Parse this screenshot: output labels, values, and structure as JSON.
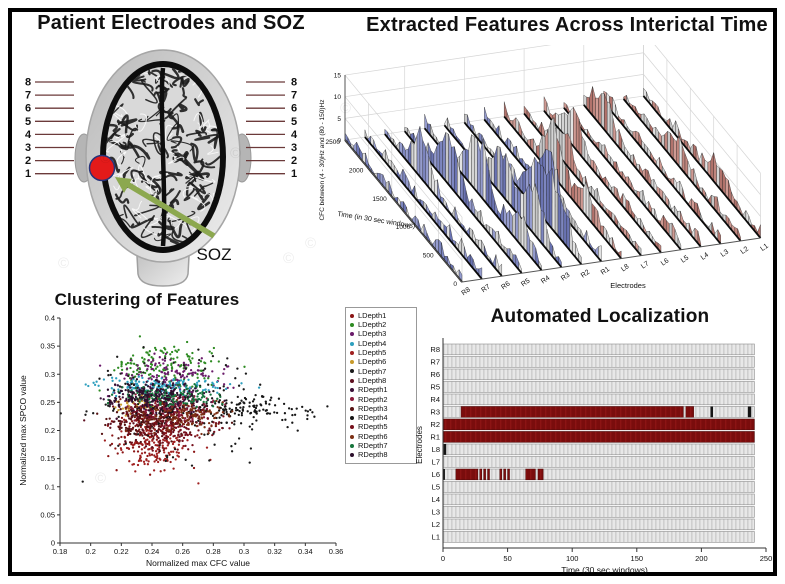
{
  "figure": {
    "background": "#ffffff",
    "border_color": "#000000",
    "watermark_symbol": "©"
  },
  "panel1": {
    "title": "Patient Electrodes and SOZ",
    "electrode_numbers": [
      "8",
      "7",
      "6",
      "5",
      "4",
      "3",
      "2",
      "1"
    ],
    "soz_label": "SOZ",
    "colors": {
      "soz_dot": "#e31a1a",
      "soz_dot_edge": "#26337a",
      "arrow": "#8ca84f",
      "electrode_line": "#6b3a3a"
    }
  },
  "panel2": {
    "title": "Extracted Features Across Interictal Time"
  },
  "panel3": {
    "title": "Clustering of Features"
  },
  "panel4": {
    "title": "Automated Localization"
  },
  "chart_data": [
    {
      "type": "area",
      "variant": "3d-waterfall",
      "title": "Extracted Features Across Interictal Time",
      "xlabel": "Electrodes",
      "ylabel": "Time (in 30 sec windows)",
      "zlabel": "CFC between (4 - 30)Hz and (80 - 150)Hz",
      "electrodes": [
        "R8",
        "R7",
        "R6",
        "R5",
        "R4",
        "R3",
        "R2",
        "R1",
        "L8",
        "L7",
        "L6",
        "L5",
        "L4",
        "L3",
        "L2",
        "L1"
      ],
      "time_range": [
        0,
        2500
      ],
      "time_ticks": [
        0,
        500,
        1000,
        1500,
        2000,
        2500
      ],
      "z_range": [
        0,
        15
      ],
      "z_ticks": [
        0,
        5,
        10,
        15
      ],
      "baseline_noise": [
        0,
        3
      ],
      "colors": {
        "right_electrodes": "#7d86c0",
        "left_electrodes": "#c1867e",
        "facet_gray": "#d4d4d4",
        "grid": "#d5d5d5"
      },
      "peaks": [
        {
          "electrode": "R6",
          "time": 1700,
          "value": 8
        },
        {
          "electrode": "R5",
          "time": 1550,
          "value": 10
        },
        {
          "electrode": "R4",
          "time": 1350,
          "value": 12
        },
        {
          "electrode": "R4",
          "time": 450,
          "value": 5
        },
        {
          "electrode": "R3",
          "time": 1250,
          "value": 9
        },
        {
          "electrode": "R3",
          "time": 600,
          "value": 9
        },
        {
          "electrode": "R2",
          "time": 950,
          "value": 10
        },
        {
          "electrode": "R2",
          "time": 500,
          "value": 10
        },
        {
          "electrode": "R1",
          "time": 1100,
          "value": 8
        },
        {
          "electrode": "L8",
          "time": 1450,
          "value": 10
        },
        {
          "electrode": "L8",
          "time": 700,
          "value": 5
        },
        {
          "electrode": "L7",
          "time": 1650,
          "value": 5
        },
        {
          "electrode": "L6",
          "time": 1850,
          "value": 7
        },
        {
          "electrode": "L4",
          "time": 2100,
          "value": 6
        },
        {
          "electrode": "L2",
          "time": 1300,
          "value": 4
        },
        {
          "electrode": "L1",
          "time": 900,
          "value": 4
        }
      ]
    },
    {
      "type": "scatter",
      "title": "Clustering of Features",
      "xlabel": "Normalized max CFC value",
      "ylabel": "Normalized max SPCO value",
      "xlim": [
        0.18,
        0.36
      ],
      "ylim": [
        0,
        0.4
      ],
      "xticks": [
        "0.18",
        "0.2",
        "0.22",
        "0.24",
        "0.26",
        "0.28",
        "0.3",
        "0.32",
        "0.34",
        "0.36"
      ],
      "yticks": [
        "0",
        "0.05",
        "0.1",
        "0.15",
        "0.2",
        "0.25",
        "0.3",
        "0.35",
        "0.4"
      ],
      "legend_position": "right-outside",
      "series": [
        {
          "name": "LDepth1",
          "color": "#8b1515",
          "n": 150,
          "center": [
            0.236,
            0.195
          ],
          "spread": [
            0.013,
            0.028
          ]
        },
        {
          "name": "LDepth2",
          "color": "#2e8b22",
          "n": 150,
          "center": [
            0.246,
            0.315
          ],
          "spread": [
            0.017,
            0.02
          ]
        },
        {
          "name": "LDepth3",
          "color": "#6a1b6a",
          "n": 140,
          "center": [
            0.249,
            0.298
          ],
          "spread": [
            0.019,
            0.018
          ]
        },
        {
          "name": "LDepth4",
          "color": "#2e9fbe",
          "n": 150,
          "center": [
            0.243,
            0.279
          ],
          "spread": [
            0.021,
            0.008
          ]
        },
        {
          "name": "LDepth5",
          "color": "#a02020",
          "n": 120,
          "center": [
            0.243,
            0.17
          ],
          "spread": [
            0.012,
            0.022
          ]
        },
        {
          "name": "LDepth6",
          "color": "#c79a2a",
          "n": 60,
          "center": [
            0.23,
            0.247
          ],
          "spread": [
            0.009,
            0.009
          ]
        },
        {
          "name": "LDepth7",
          "color": "#1a1a1a",
          "n": 170,
          "center": [
            0.255,
            0.24
          ],
          "spread": [
            0.033,
            0.042
          ]
        },
        {
          "name": "LDepth8",
          "color": "#5e1020",
          "n": 140,
          "center": [
            0.24,
            0.223
          ],
          "spread": [
            0.014,
            0.02
          ]
        },
        {
          "name": "RDepth1",
          "color": "#3a1038",
          "n": 140,
          "center": [
            0.25,
            0.256
          ],
          "spread": [
            0.015,
            0.014
          ]
        },
        {
          "name": "RDepth2",
          "color": "#8b1a3a",
          "n": 140,
          "center": [
            0.252,
            0.236
          ],
          "spread": [
            0.014,
            0.014
          ]
        },
        {
          "name": "RDepth3",
          "color": "#571313",
          "n": 140,
          "center": [
            0.238,
            0.214
          ],
          "spread": [
            0.014,
            0.016
          ]
        },
        {
          "name": "RDepth4",
          "color": "#151515",
          "n": 150,
          "center": [
            0.295,
            0.235
          ],
          "spread": [
            0.028,
            0.011
          ]
        },
        {
          "name": "RDepth5",
          "color": "#76101c",
          "n": 130,
          "center": [
            0.256,
            0.205
          ],
          "spread": [
            0.013,
            0.016
          ]
        },
        {
          "name": "RDepth6",
          "color": "#7c3015",
          "n": 130,
          "center": [
            0.261,
            0.226
          ],
          "spread": [
            0.014,
            0.013
          ]
        },
        {
          "name": "RDepth7",
          "color": "#16743c",
          "n": 140,
          "center": [
            0.251,
            0.262
          ],
          "spread": [
            0.018,
            0.009
          ]
        },
        {
          "name": "RDepth8",
          "color": "#2c0f2c",
          "n": 130,
          "center": [
            0.236,
            0.26
          ],
          "spread": [
            0.014,
            0.012
          ]
        }
      ]
    },
    {
      "type": "heatmap",
      "variant": "raster",
      "title": "Automated Localization",
      "xlabel": "Time (30 sec windows)",
      "ylabel": "Electrodes",
      "xlim": [
        0,
        250
      ],
      "xticks": [
        0,
        50,
        100,
        150,
        200,
        250
      ],
      "colors": {
        "active": "#7a0d0d",
        "active_stripe": "#8c1414",
        "inactive": "#e8e8e8",
        "inactive_stripe": "#cfcfcf",
        "tick": "#151515"
      },
      "rows": [
        {
          "label": "R8",
          "active": [],
          "ticks": []
        },
        {
          "label": "R7",
          "active": [],
          "ticks": []
        },
        {
          "label": "R6",
          "active": [],
          "ticks": []
        },
        {
          "label": "R5",
          "active": [],
          "ticks": []
        },
        {
          "label": "R4",
          "active": [],
          "ticks": []
        },
        {
          "label": "R3",
          "active": [
            [
              14,
              186
            ],
            [
              188,
              194
            ]
          ],
          "ticks": [
            [
              207,
              209
            ],
            [
              236,
              238.5
            ]
          ]
        },
        {
          "label": "R2",
          "active": [
            [
              0,
              241
            ]
          ],
          "ticks": []
        },
        {
          "label": "R1",
          "active": [
            [
              0,
              241
            ]
          ],
          "ticks": []
        },
        {
          "label": "L8",
          "active": [],
          "ticks": [
            [
              0.5,
              2.5
            ]
          ]
        },
        {
          "label": "L7",
          "active": [],
          "ticks": []
        },
        {
          "label": "L6",
          "active": [
            [
              10,
              27
            ],
            [
              28.5,
              30
            ],
            [
              31.5,
              33
            ],
            [
              34.5,
              36
            ],
            [
              44,
              45.5
            ],
            [
              47,
              48.5
            ],
            [
              50,
              51.5
            ],
            [
              64,
              71.5
            ],
            [
              73.5,
              77.5
            ]
          ],
          "ticks": [
            [
              0,
              1.5
            ]
          ]
        },
        {
          "label": "L5",
          "active": [],
          "ticks": []
        },
        {
          "label": "L4",
          "active": [],
          "ticks": []
        },
        {
          "label": "L3",
          "active": [],
          "ticks": []
        },
        {
          "label": "L2",
          "active": [],
          "ticks": []
        },
        {
          "label": "L1",
          "active": [],
          "ticks": []
        }
      ]
    }
  ]
}
